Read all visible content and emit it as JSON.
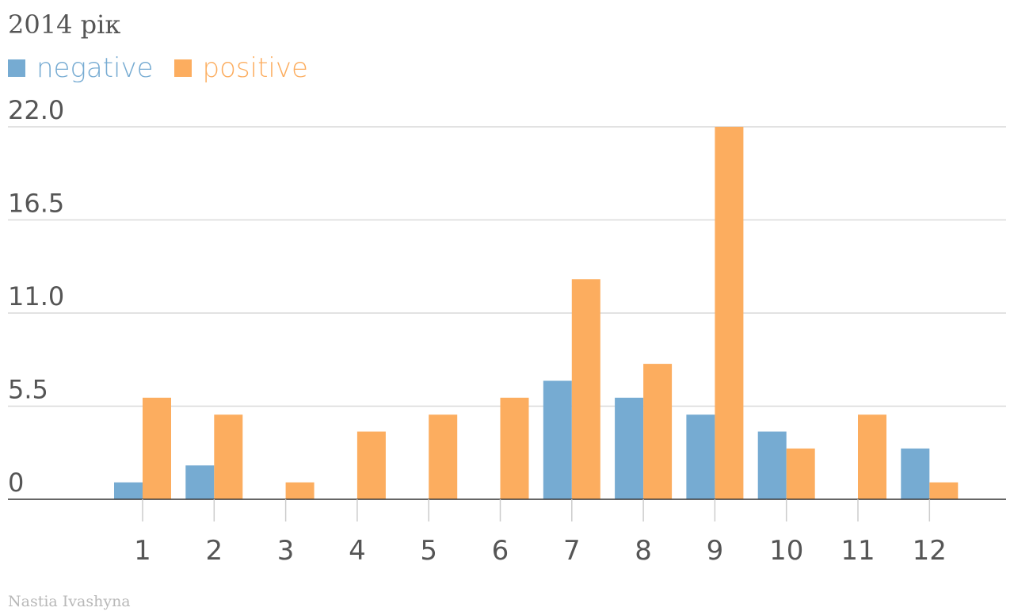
{
  "footer": {
    "author": "Nastia Ivashyna"
  },
  "chart_data": {
    "type": "bar",
    "title": "2014 рік",
    "categories": [
      "1",
      "2",
      "3",
      "4",
      "5",
      "6",
      "7",
      "8",
      "9",
      "10",
      "11",
      "12"
    ],
    "series": [
      {
        "name": "negative",
        "color": "#76abd2",
        "values": [
          1,
          2,
          0,
          0,
          0,
          0,
          7,
          6,
          5,
          4,
          0,
          3
        ]
      },
      {
        "name": "positive",
        "color": "#fcad5f",
        "values": [
          6,
          5,
          1,
          4,
          5,
          6,
          13,
          8,
          22,
          3,
          5,
          1
        ]
      }
    ],
    "yticks": [
      "0",
      "5.5",
      "11.0",
      "16.5",
      "22.0"
    ],
    "ytick_values": [
      0,
      5.5,
      11,
      16.5,
      22
    ],
    "ylim": [
      0,
      22
    ],
    "grid": true,
    "legend_position": "top-left"
  }
}
